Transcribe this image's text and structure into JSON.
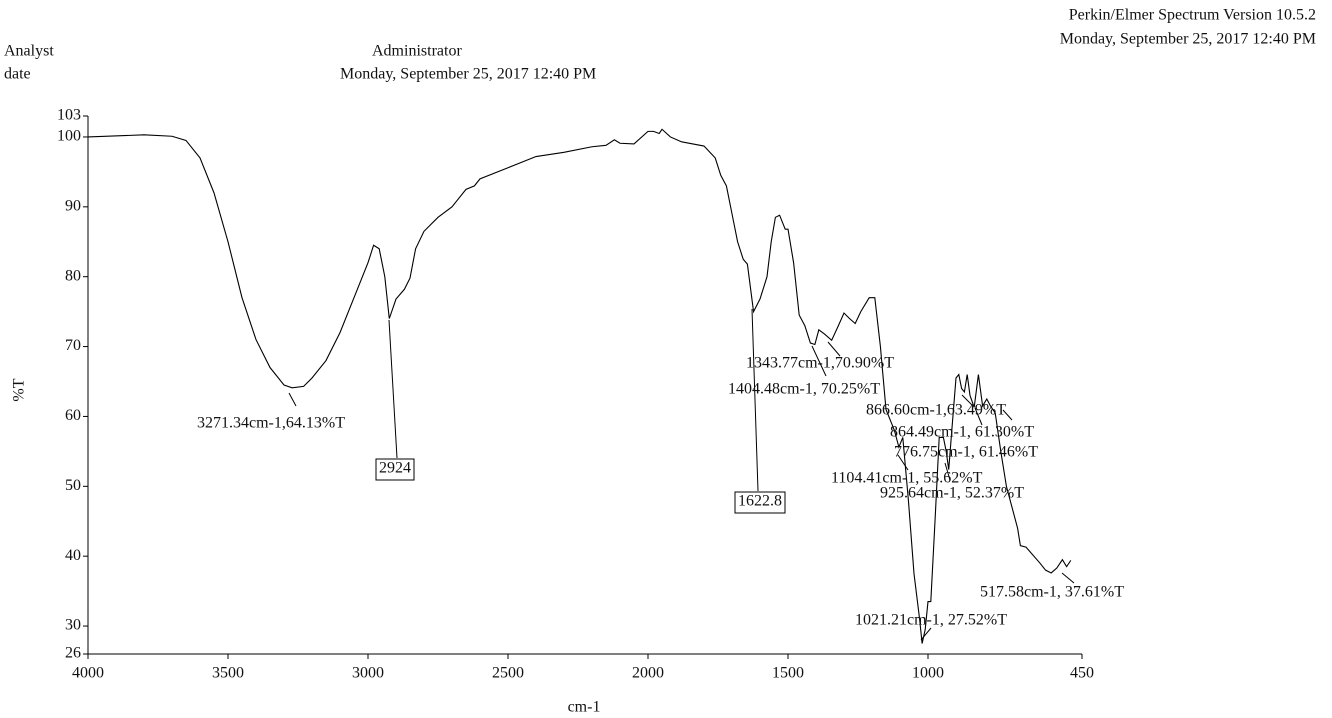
{
  "chart_data": {
    "type": "line",
    "header": {
      "software": "Perkin/Elmer Spectrum Version 10.5.2",
      "software_date": "Monday, September 25, 2017 12:40 PM",
      "analyst_label": "Analyst",
      "date_label": "date",
      "analyst": "Administrator",
      "date": "Monday, September 25, 2017 12:40 PM"
    },
    "x_label": "cm-1",
    "y_label": "%T",
    "color": "#000000",
    "xlim": [
      4000,
      450
    ],
    "ylim": [
      26,
      103
    ],
    "xticks": [
      4000,
      3500,
      3000,
      2500,
      2000,
      1500,
      1000,
      450
    ],
    "yticks": [
      26,
      30,
      40,
      50,
      60,
      70,
      80,
      90,
      100,
      103
    ],
    "x": [
      4000,
      3800,
      3700,
      3650,
      3600,
      3550,
      3500,
      3450,
      3400,
      3350,
      3300,
      3271,
      3230,
      3200,
      3150,
      3100,
      3050,
      3000,
      2980,
      2960,
      2940,
      2924,
      2900,
      2870,
      2850,
      2830,
      2800,
      2750,
      2700,
      2680,
      2650,
      2620,
      2600,
      2500,
      2400,
      2300,
      2200,
      2150,
      2120,
      2100,
      2050,
      2000,
      1980,
      1960,
      1950,
      1920,
      1880,
      1800,
      1760,
      1740,
      1720,
      1700,
      1680,
      1660,
      1645,
      1623,
      1600,
      1575,
      1560,
      1545,
      1530,
      1510,
      1500,
      1480,
      1460,
      1440,
      1420,
      1404,
      1390,
      1370,
      1344,
      1320,
      1300,
      1280,
      1260,
      1240,
      1210,
      1190,
      1170,
      1150,
      1120,
      1104,
      1090,
      1070,
      1050,
      1030,
      1021,
      1010,
      1000,
      990,
      975,
      960,
      945,
      935,
      926,
      915,
      900,
      890,
      880,
      870,
      860,
      850,
      835,
      820,
      805,
      790,
      777,
      760,
      740,
      720,
      700,
      680,
      670,
      650,
      600,
      580,
      560,
      540,
      520,
      505,
      490
    ],
    "values": [
      100.0,
      100.3,
      100.1,
      99.5,
      97,
      92,
      85,
      77,
      71,
      67,
      64.5,
      64.1,
      64.3,
      65.5,
      68,
      72,
      77,
      82,
      84.5,
      84,
      80,
      74,
      76.8,
      78.2,
      79.8,
      84,
      86.5,
      88.5,
      90,
      91,
      92.5,
      93,
      94,
      95.6,
      97.2,
      97.8,
      98.6,
      98.8,
      99.6,
      99.1,
      99,
      100.8,
      100.8,
      100.5,
      101.1,
      100,
      99.3,
      98.7,
      97,
      94.5,
      93,
      89,
      85,
      82.5,
      81.8,
      75,
      76.8,
      80,
      85,
      88.5,
      88.8,
      86.8,
      86.8,
      82,
      74.5,
      73,
      70.5,
      70.3,
      72.4,
      71.8,
      70.9,
      73,
      74.8,
      74,
      73.3,
      75,
      77,
      77,
      70,
      61,
      58,
      55.6,
      57,
      48,
      37.5,
      31,
      27.5,
      29.5,
      33.5,
      33.5,
      45,
      57,
      57,
      55,
      52.4,
      58,
      65.5,
      66,
      64,
      63.5,
      66,
      63,
      61.3,
      66,
      61.5,
      62.5,
      61.5,
      60.5,
      55,
      50,
      47,
      44,
      41.5,
      41.3,
      39,
      38,
      37.6,
      38.3,
      39.5,
      38.5,
      39.4
    ],
    "annotations": [
      {
        "text": "3271.34cm-1,64.13%T"
      },
      {
        "text": "2924",
        "boxed": true
      },
      {
        "text": "1622.8",
        "boxed": true
      },
      {
        "text": "1343.77cm-1,70.90%T"
      },
      {
        "text": "1404.48cm-1, 70.25%T"
      },
      {
        "text": "866.60cm-1,63.49%T"
      },
      {
        "text": "864.49cm-1, 61.30%T"
      },
      {
        "text": "776.75cm-1, 61.46%T"
      },
      {
        "text": "1104.41cm-1, 55.62%T"
      },
      {
        "text": "925.64cm-1, 52.37%T"
      },
      {
        "text": "1021.21cm-1, 27.52%T"
      },
      {
        "text": "517.58cm-1, 37.61%T"
      }
    ]
  }
}
